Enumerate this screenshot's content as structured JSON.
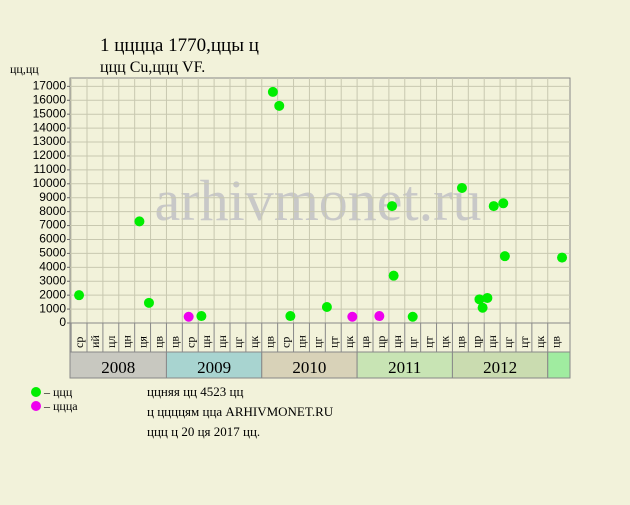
{
  "chart_data": {
    "type": "scatter",
    "title": "1 ццццa 1770,ццы ц",
    "subtitle": "ццц Cu,ццц VF.",
    "y_label": "цц,цц",
    "watermark": "arhivmonet.ru",
    "categories": [
      "ср",
      "ий",
      "цл",
      "цн",
      "ця",
      "цв",
      "цв",
      "ср",
      "цн",
      "цн",
      "цг",
      "цк",
      "цв",
      "ср",
      "цн",
      "цг",
      "цт",
      "цк",
      "цв",
      "цр",
      "цн",
      "цг",
      "цт",
      "цк",
      "цв",
      "цр",
      "цн",
      "цг",
      "цт",
      "цк",
      "цв"
    ],
    "years": [
      "2008",
      "2009",
      "2010",
      "2011",
      "2012"
    ],
    "xlim": [
      -0.57,
      30.9
    ],
    "ylim": [
      0,
      17600
    ],
    "yticks": [
      0,
      1000,
      2000,
      3000,
      4000,
      5000,
      6000,
      7000,
      8000,
      9000,
      10000,
      11000,
      12000,
      13000,
      14000,
      15000,
      16000,
      17000
    ],
    "grid": true,
    "series": [
      {
        "name": "– ццц",
        "color": "#00ee00",
        "x": [
          0,
          3.8,
          4.4,
          7.7,
          12.2,
          12.6,
          13.3,
          15.6,
          19.7,
          19.8,
          21,
          24.1,
          25.2,
          25.4,
          25.7,
          26.1,
          26.7,
          26.8,
          30.4
        ],
        "values": [
          2000,
          7300,
          1450,
          500,
          16600,
          15600,
          500,
          1150,
          8400,
          3400,
          450,
          9700,
          1700,
          1100,
          1800,
          8400,
          8600,
          4800,
          4700
        ]
      },
      {
        "name": "– цццa",
        "color": "#ee00ee",
        "x": [
          6.9,
          17.2,
          18.9
        ],
        "values": [
          450,
          450,
          500
        ]
      }
    ],
    "footer": [
      "ццняя цц 4523 цц",
      "ц ццццям цца ARHIVMONET.RU",
      "ццц ц 20 ця 2017 цц."
    ]
  }
}
